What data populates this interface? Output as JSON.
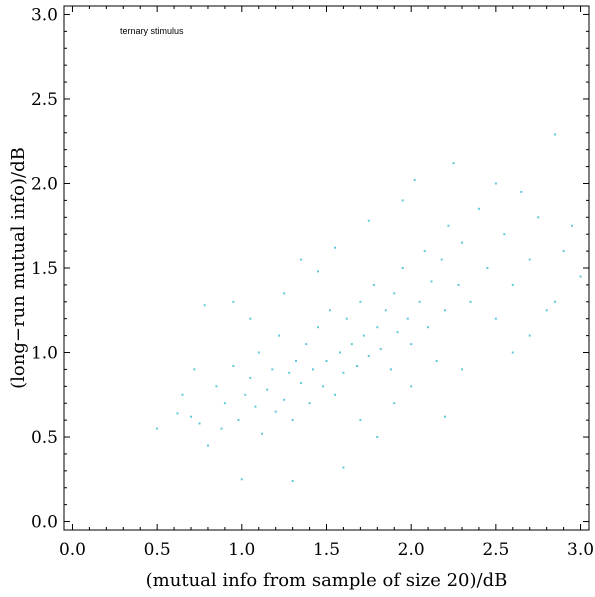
{
  "chart_data": {
    "type": "scatter",
    "title": "",
    "xlabel": "(mutual info from sample of size 20)/dB",
    "ylabel": "(long−run mutual info)/dB",
    "annotation": "ternary stimulus",
    "xlim": [
      -0.05,
      3.05
    ],
    "ylim": [
      -0.05,
      3.05
    ],
    "x_ticks": [
      "0.0",
      "0.5",
      "1.0",
      "1.5",
      "2.0",
      "2.5",
      "3.0"
    ],
    "y_ticks": [
      "0.0",
      "0.5",
      "1.0",
      "1.5",
      "2.0",
      "2.5",
      "3.0"
    ],
    "grid": false,
    "legend": "none",
    "point_color": "#5fc9dc",
    "points": [
      [
        0.5,
        0.55
      ],
      [
        0.62,
        0.64
      ],
      [
        0.65,
        0.75
      ],
      [
        0.7,
        0.62
      ],
      [
        0.72,
        0.9
      ],
      [
        0.75,
        0.58
      ],
      [
        0.78,
        1.28
      ],
      [
        0.8,
        0.45
      ],
      [
        0.85,
        0.8
      ],
      [
        0.88,
        0.55
      ],
      [
        0.9,
        0.7
      ],
      [
        0.95,
        0.92
      ],
      [
        0.98,
        0.6
      ],
      [
        1.0,
        0.25
      ],
      [
        1.02,
        0.75
      ],
      [
        1.05,
        0.85
      ],
      [
        1.08,
        0.68
      ],
      [
        1.1,
        1.0
      ],
      [
        1.12,
        0.52
      ],
      [
        1.15,
        0.78
      ],
      [
        1.18,
        0.9
      ],
      [
        1.2,
        0.65
      ],
      [
        1.22,
        1.1
      ],
      [
        1.25,
        0.72
      ],
      [
        1.28,
        0.88
      ],
      [
        1.3,
        0.6
      ],
      [
        1.32,
        0.95
      ],
      [
        1.35,
        0.82
      ],
      [
        1.38,
        1.05
      ],
      [
        1.4,
        0.7
      ],
      [
        1.42,
        0.9
      ],
      [
        1.45,
        1.15
      ],
      [
        1.48,
        0.8
      ],
      [
        1.5,
        0.95
      ],
      [
        1.52,
        1.25
      ],
      [
        1.55,
        0.75
      ],
      [
        1.58,
        1.0
      ],
      [
        1.6,
        0.88
      ],
      [
        1.62,
        1.2
      ],
      [
        1.65,
        1.05
      ],
      [
        1.68,
        0.92
      ],
      [
        1.7,
        1.3
      ],
      [
        1.72,
        1.1
      ],
      [
        1.75,
        0.98
      ],
      [
        1.78,
        1.4
      ],
      [
        1.8,
        1.15
      ],
      [
        1.82,
        1.02
      ],
      [
        1.85,
        1.25
      ],
      [
        1.88,
        0.9
      ],
      [
        1.9,
        1.35
      ],
      [
        1.92,
        1.12
      ],
      [
        1.95,
        1.5
      ],
      [
        1.98,
        1.2
      ],
      [
        2.0,
        1.05
      ],
      [
        2.02,
        2.02
      ],
      [
        2.05,
        1.3
      ],
      [
        2.08,
        1.6
      ],
      [
        2.1,
        1.15
      ],
      [
        2.12,
        1.42
      ],
      [
        2.15,
        0.95
      ],
      [
        2.18,
        1.55
      ],
      [
        2.2,
        1.25
      ],
      [
        2.22,
        1.75
      ],
      [
        2.25,
        2.12
      ],
      [
        2.28,
        1.4
      ],
      [
        2.3,
        1.65
      ],
      [
        2.35,
        1.3
      ],
      [
        2.4,
        1.85
      ],
      [
        2.45,
        1.5
      ],
      [
        2.5,
        2.0
      ],
      [
        2.55,
        1.7
      ],
      [
        2.6,
        1.4
      ],
      [
        2.65,
        1.95
      ],
      [
        2.7,
        1.55
      ],
      [
        2.75,
        1.8
      ],
      [
        2.8,
        1.25
      ],
      [
        2.85,
        2.29
      ],
      [
        2.9,
        1.6
      ],
      [
        2.95,
        1.75
      ],
      [
        3.0,
        1.45
      ],
      [
        1.3,
        0.24
      ],
      [
        1.6,
        0.32
      ],
      [
        1.45,
        1.48
      ],
      [
        1.55,
        1.62
      ],
      [
        1.25,
        1.35
      ],
      [
        1.7,
        0.6
      ],
      [
        1.9,
        0.7
      ],
      [
        2.0,
        0.8
      ],
      [
        2.3,
        0.9
      ],
      [
        2.6,
        1.0
      ],
      [
        1.05,
        1.2
      ],
      [
        0.95,
        1.3
      ],
      [
        1.35,
        1.55
      ],
      [
        1.75,
        1.78
      ],
      [
        1.95,
        1.9
      ],
      [
        2.5,
        1.2
      ],
      [
        2.7,
        1.1
      ],
      [
        2.85,
        1.3
      ],
      [
        2.2,
        0.62
      ],
      [
        1.8,
        0.5
      ]
    ]
  }
}
